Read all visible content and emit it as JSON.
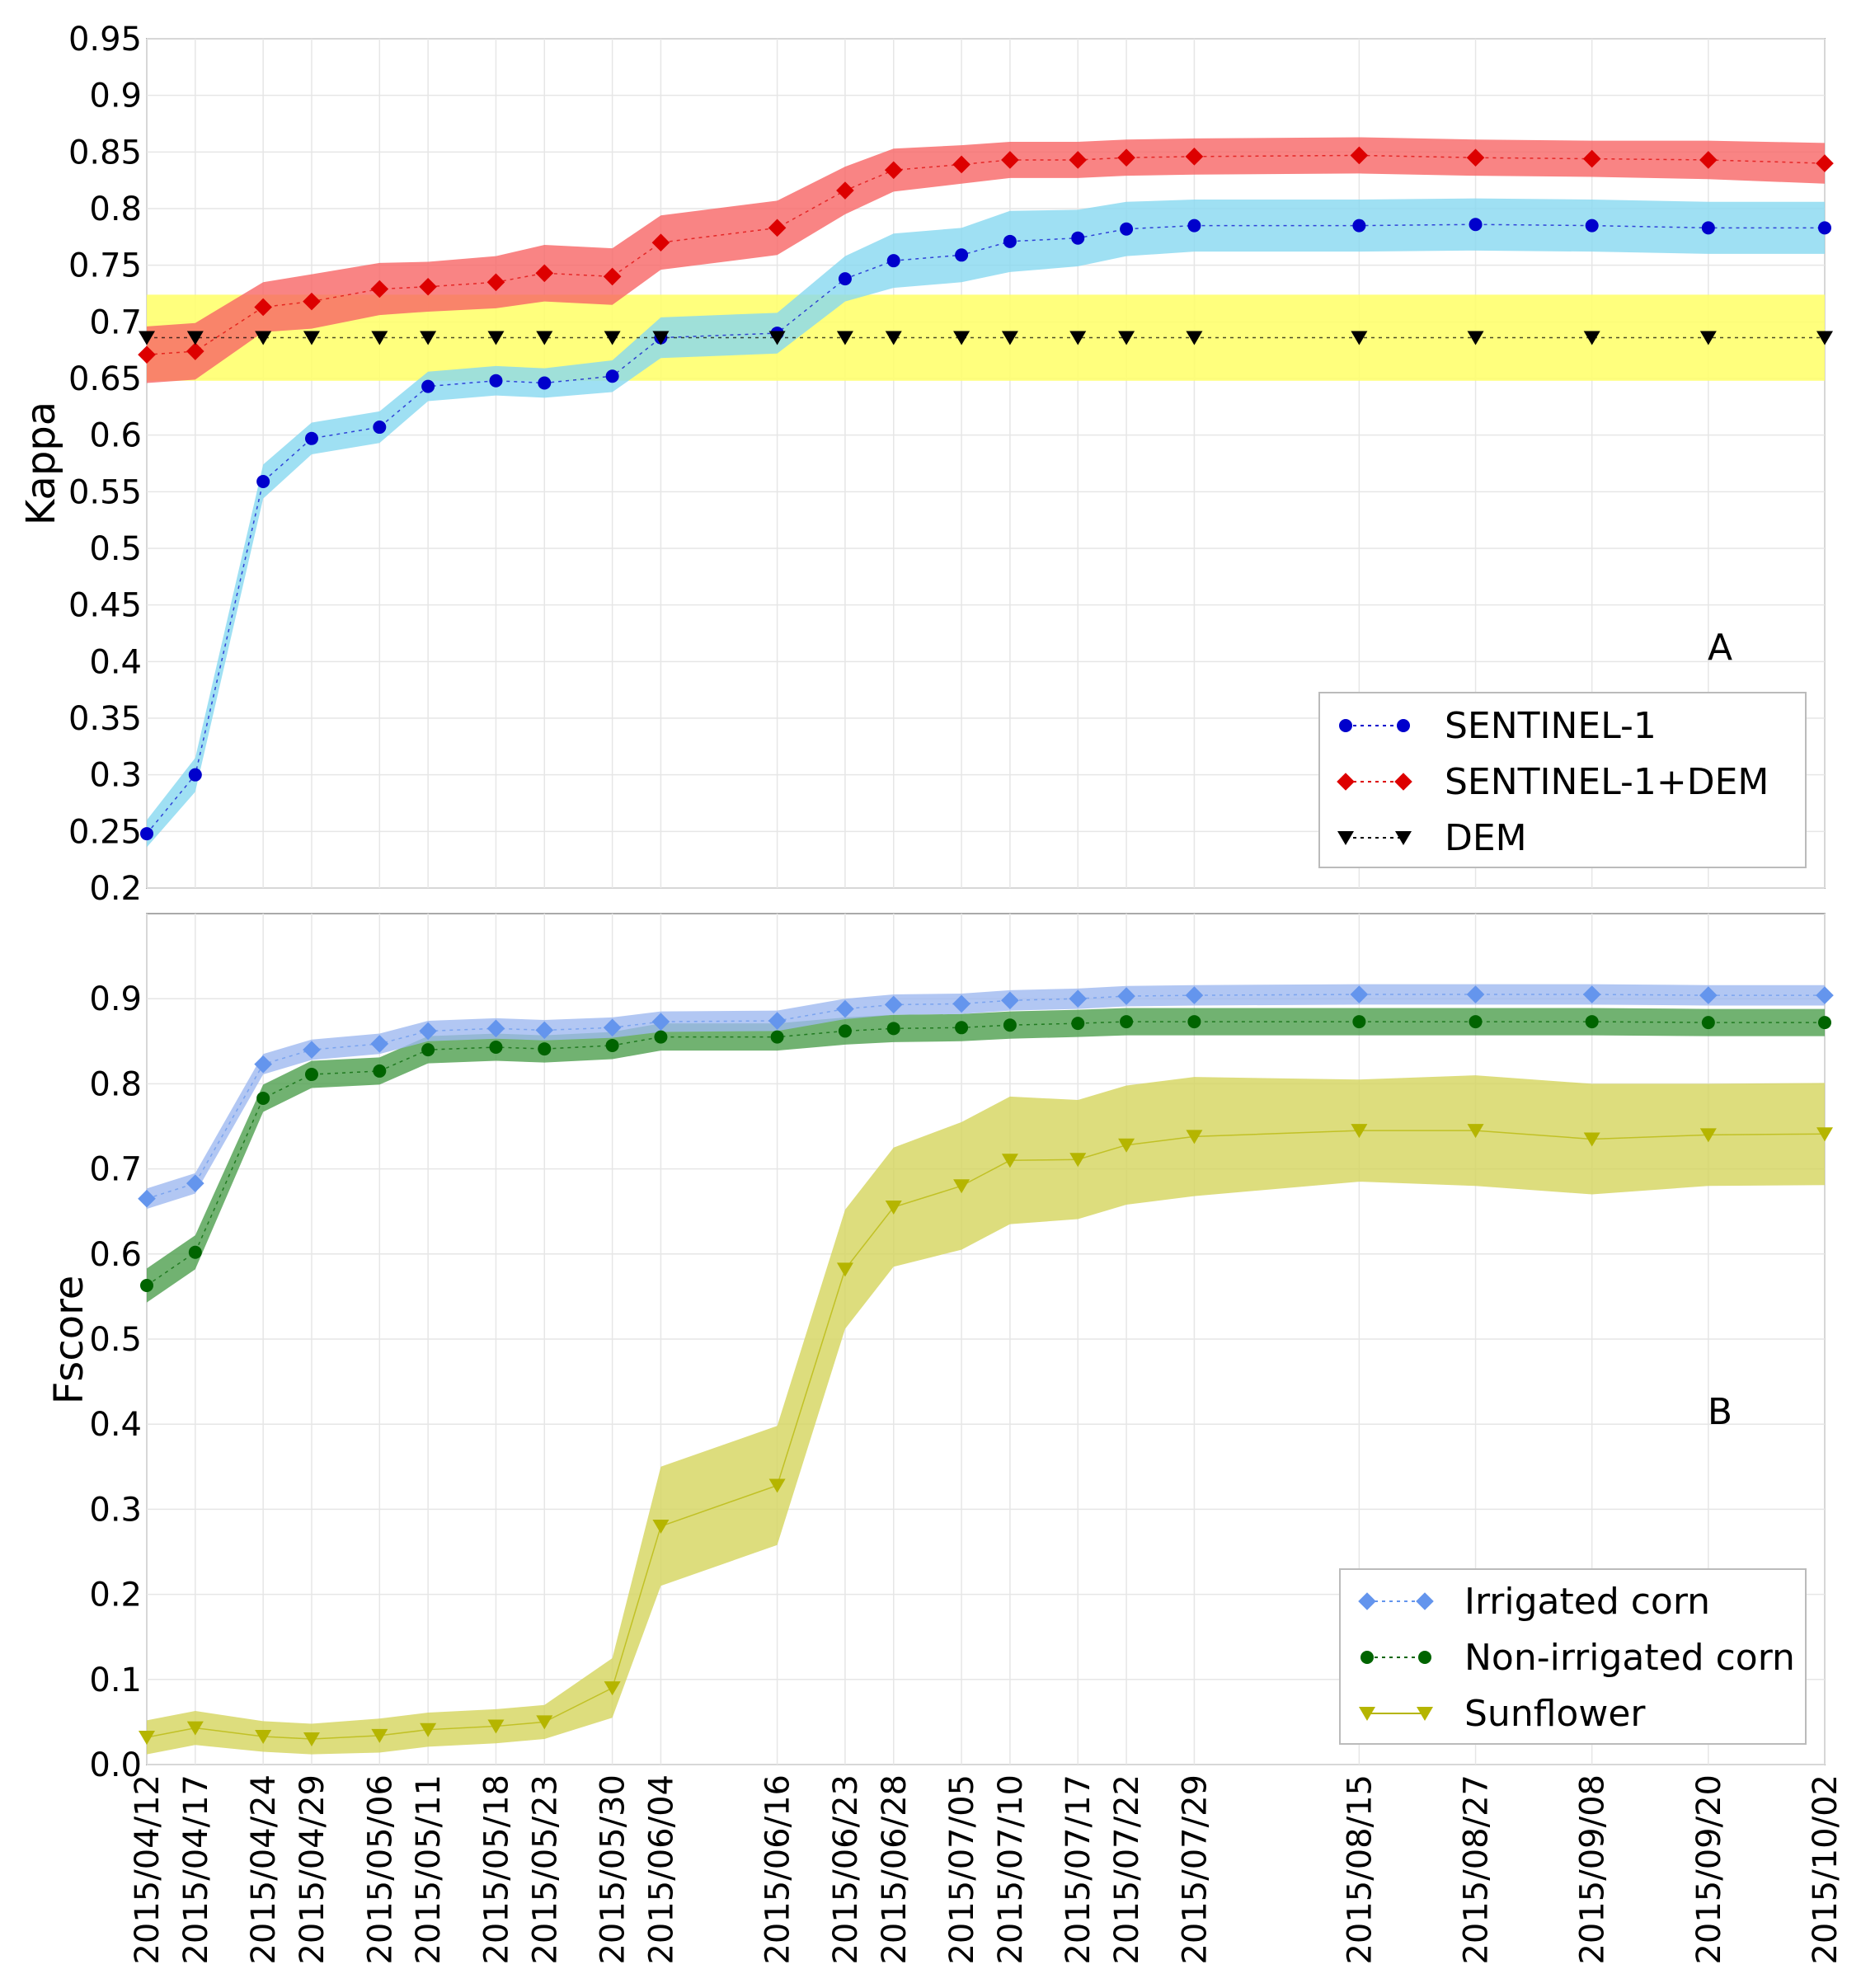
{
  "chart_data": [
    {
      "type": "line",
      "panel_label": "A",
      "ylabel": "Kappa",
      "ylim": [
        0.2,
        0.95
      ],
      "yticks": [
        "0.95",
        "0.9",
        "0.85",
        "0.8",
        "0.75",
        "0.7",
        "0.65",
        "0.6",
        "0.55",
        "0.5",
        "0.45",
        "0.4",
        "0.35",
        "0.3",
        "0.25",
        "0.2"
      ],
      "grid": true,
      "legend_position": "lower-right",
      "x": [
        "2015/04/12",
        "2015/04/17",
        "2015/04/24",
        "2015/04/29",
        "2015/05/06",
        "2015/05/11",
        "2015/05/18",
        "2015/05/23",
        "2015/05/30",
        "2015/06/04",
        "2015/06/16",
        "2015/06/23",
        "2015/06/28",
        "2015/07/05",
        "2015/07/10",
        "2015/07/17",
        "2015/07/22",
        "2015/07/29",
        "2015/08/15",
        "2015/08/27",
        "2015/09/08",
        "2015/09/20",
        "2015/10/02"
      ],
      "series": [
        {
          "name": "SENTINEL-1",
          "marker": "circle",
          "color": "#0000cc",
          "band_color": "#87d8f0",
          "values": [
            0.248,
            0.3,
            0.559,
            0.597,
            0.607,
            0.643,
            0.648,
            0.646,
            0.652,
            0.686,
            0.69,
            0.738,
            0.754,
            0.759,
            0.771,
            0.774,
            0.782,
            0.785,
            0.785,
            0.786,
            0.785,
            0.783,
            0.783
          ],
          "band": [
            0.012,
            0.015,
            0.015,
            0.014,
            0.014,
            0.013,
            0.013,
            0.013,
            0.014,
            0.018,
            0.018,
            0.02,
            0.024,
            0.024,
            0.027,
            0.025,
            0.024,
            0.023,
            0.023,
            0.023,
            0.023,
            0.023,
            0.023
          ]
        },
        {
          "name": "SENTINEL-1+DEM",
          "marker": "diamond",
          "color": "#dd0000",
          "band_color": "#f76565",
          "values": [
            0.671,
            0.674,
            0.713,
            0.718,
            0.729,
            0.731,
            0.735,
            0.743,
            0.74,
            0.77,
            0.783,
            0.816,
            0.834,
            0.839,
            0.843,
            0.843,
            0.845,
            0.846,
            0.847,
            0.845,
            0.844,
            0.843,
            0.84
          ],
          "band": [
            0.025,
            0.025,
            0.022,
            0.024,
            0.023,
            0.022,
            0.023,
            0.025,
            0.025,
            0.024,
            0.024,
            0.021,
            0.019,
            0.017,
            0.016,
            0.016,
            0.016,
            0.016,
            0.016,
            0.016,
            0.016,
            0.017,
            0.018
          ]
        },
        {
          "name": "DEM",
          "marker": "triangle-down",
          "color": "#000000",
          "band_color": "#ffff66",
          "values": [
            0.686,
            0.686,
            0.686,
            0.686,
            0.686,
            0.686,
            0.686,
            0.686,
            0.686,
            0.686,
            0.686,
            0.686,
            0.686,
            0.686,
            0.686,
            0.686,
            0.686,
            0.686,
            0.686,
            0.686,
            0.686,
            0.686,
            0.686
          ],
          "band": [
            0.038,
            0.038,
            0.038,
            0.038,
            0.038,
            0.038,
            0.038,
            0.038,
            0.038,
            0.038,
            0.038,
            0.038,
            0.038,
            0.038,
            0.038,
            0.038,
            0.038,
            0.038,
            0.038,
            0.038,
            0.038,
            0.038,
            0.038
          ]
        }
      ]
    },
    {
      "type": "line",
      "panel_label": "B",
      "ylabel": "Fscore",
      "ylim": [
        0.0,
        1.0
      ],
      "yticks": [
        "0.9",
        "0.8",
        "0.7",
        "0.6",
        "0.5",
        "0.4",
        "0.3",
        "0.2",
        "0.1",
        "0.0"
      ],
      "grid": true,
      "legend_position": "lower-right",
      "x": [
        "2015/04/12",
        "2015/04/17",
        "2015/04/24",
        "2015/04/29",
        "2015/05/06",
        "2015/05/11",
        "2015/05/18",
        "2015/05/23",
        "2015/05/30",
        "2015/06/04",
        "2015/06/16",
        "2015/06/23",
        "2015/06/28",
        "2015/07/05",
        "2015/07/10",
        "2015/07/17",
        "2015/07/22",
        "2015/07/29",
        "2015/08/15",
        "2015/08/27",
        "2015/09/08",
        "2015/09/20",
        "2015/10/02"
      ],
      "series": [
        {
          "name": "Irrigated corn",
          "marker": "diamond",
          "color": "#6495ed",
          "band_color": "#9fb9f0",
          "values": [
            0.665,
            0.683,
            0.823,
            0.84,
            0.847,
            0.862,
            0.865,
            0.863,
            0.866,
            0.873,
            0.874,
            0.888,
            0.893,
            0.894,
            0.898,
            0.9,
            0.903,
            0.904,
            0.905,
            0.905,
            0.905,
            0.904,
            0.904
          ],
          "band": [
            0.012,
            0.012,
            0.012,
            0.012,
            0.012,
            0.012,
            0.012,
            0.012,
            0.012,
            0.012,
            0.012,
            0.012,
            0.012,
            0.012,
            0.012,
            0.012,
            0.012,
            0.012,
            0.012,
            0.012,
            0.012,
            0.012,
            0.012
          ]
        },
        {
          "name": "Non-irrigated corn",
          "marker": "circle",
          "color": "#006400",
          "band_color": "#4e9f4e",
          "values": [
            0.563,
            0.602,
            0.783,
            0.811,
            0.815,
            0.84,
            0.843,
            0.841,
            0.845,
            0.855,
            0.855,
            0.862,
            0.865,
            0.866,
            0.869,
            0.871,
            0.873,
            0.873,
            0.873,
            0.873,
            0.873,
            0.872,
            0.872
          ],
          "band": [
            0.02,
            0.02,
            0.016,
            0.016,
            0.016,
            0.016,
            0.016,
            0.016,
            0.016,
            0.016,
            0.016,
            0.016,
            0.016,
            0.016,
            0.016,
            0.016,
            0.016,
            0.016,
            0.016,
            0.016,
            0.016,
            0.016,
            0.016
          ]
        },
        {
          "name": "Sunflower",
          "marker": "triangle-down",
          "color": "#b5b500",
          "band_color": "#d4d45c",
          "values": [
            0.032,
            0.043,
            0.033,
            0.03,
            0.034,
            0.041,
            0.045,
            0.05,
            0.09,
            0.28,
            0.328,
            0.582,
            0.655,
            0.68,
            0.71,
            0.711,
            0.728,
            0.738,
            0.745,
            0.745,
            0.735,
            0.74,
            0.741
          ],
          "band": [
            0.02,
            0.02,
            0.018,
            0.018,
            0.02,
            0.02,
            0.02,
            0.02,
            0.035,
            0.07,
            0.07,
            0.07,
            0.07,
            0.075,
            0.075,
            0.07,
            0.07,
            0.07,
            0.06,
            0.065,
            0.065,
            0.06,
            0.06
          ]
        }
      ]
    }
  ]
}
